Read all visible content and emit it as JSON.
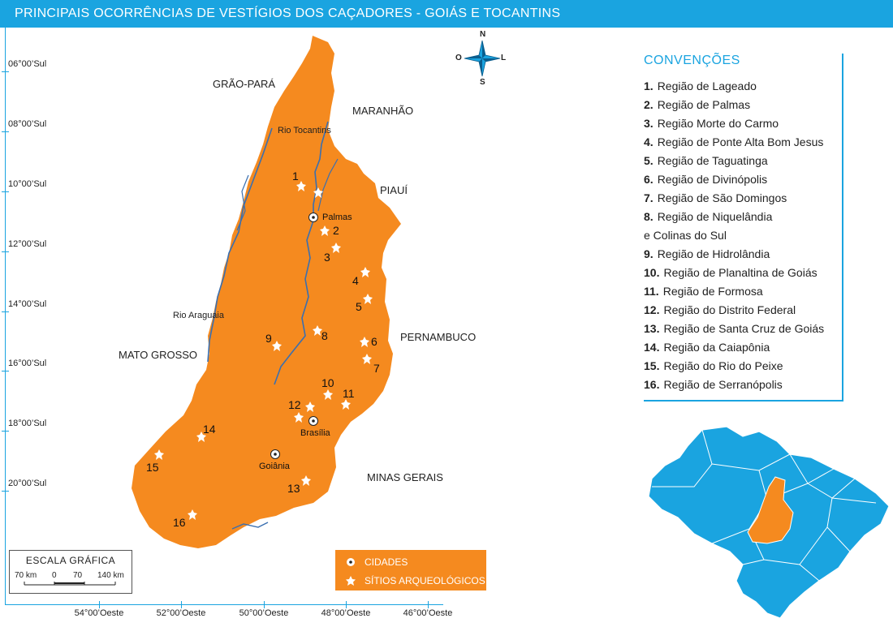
{
  "title": "PRINCIPAIS OCORRÊNCIAS DE VESTÍGIOS DOS CAÇADORES - GOIÁS E TOCANTINS",
  "colors": {
    "accent": "#1aa4e0",
    "land": "#f58a1f",
    "river": "#3a6fb0"
  },
  "latitudes": [
    "06°00’Sul",
    "08°00’Sul",
    "10°00’Sul",
    "12°00’Sul",
    "14°00’Sul",
    "16°00’Sul",
    "18°00’Sul",
    "20°00’Sul"
  ],
  "longitudes": [
    "54°00’Oeste",
    "52°00’Oeste",
    "50°00’Oeste",
    "48°00’Oeste",
    "46°00’Oeste"
  ],
  "neighbors": {
    "grao_para": "GRÃO-PARÁ",
    "maranhao": "MARANHÃO",
    "piaui": "PIAUÍ",
    "pernambuco": "PERNAMBUCO",
    "mato_grosso": "MATO GROSSO",
    "minas_gerais": "MINAS GERAIS"
  },
  "rivers": {
    "tocantins": "Rio Tocantins",
    "araguaia": "Rio Araguaia"
  },
  "cities": {
    "palmas": "Palmas",
    "brasilia": "Brasília",
    "goiania": "Goiânia"
  },
  "sites": [
    "1",
    "2",
    "3",
    "4",
    "5",
    "6",
    "7",
    "8",
    "9",
    "10",
    "11",
    "12",
    "13",
    "14",
    "15",
    "16"
  ],
  "compass": {
    "n": "N",
    "s": "S",
    "l": "L",
    "o": "O",
    "icon": "compass-rose-icon"
  },
  "scale": {
    "title": "ESCALA GRÁFICA",
    "l70": "70 km",
    "l0": "0",
    "r70": "70",
    "r140": "140 km"
  },
  "legend": {
    "cities": "CIDADES",
    "sites": "SÍTIOS ARQUEOLÓGICOS",
    "city_icon": "city-dot-icon",
    "site_icon": "star-icon"
  },
  "conventions": {
    "title": "CONVENÇÕES",
    "items": [
      {
        "n": "1.",
        "t": "Região de Lageado"
      },
      {
        "n": "2.",
        "t": "Região de Palmas"
      },
      {
        "n": "3.",
        "t": "Região Morte do Carmo"
      },
      {
        "n": "4.",
        "t": "Região de Ponte Alta Bom Jesus"
      },
      {
        "n": "5.",
        "t": "Região de Taguatinga"
      },
      {
        "n": "6.",
        "t": "Região de Divinópolis"
      },
      {
        "n": "7.",
        "t": "Região de São Domingos"
      },
      {
        "n": "8.",
        "t": "Região de Niquelândia"
      },
      {
        "n": "",
        "t": "e Colinas do Sul"
      },
      {
        "n": "9.",
        "t": "Região de Hidrolândia"
      },
      {
        "n": "10.",
        "t": "Região de Planaltina de Goiás"
      },
      {
        "n": "11.",
        "t": "Região de Formosa"
      },
      {
        "n": "12.",
        "t": "Região do Distrito Federal"
      },
      {
        "n": "13.",
        "t": "Região de Santa Cruz de Goiás"
      },
      {
        "n": "14.",
        "t": "Região da Caiapônia"
      },
      {
        "n": "15.",
        "t": "Região do Rio do Peixe"
      },
      {
        "n": "16.",
        "t": "Região de Serranópolis"
      }
    ]
  }
}
